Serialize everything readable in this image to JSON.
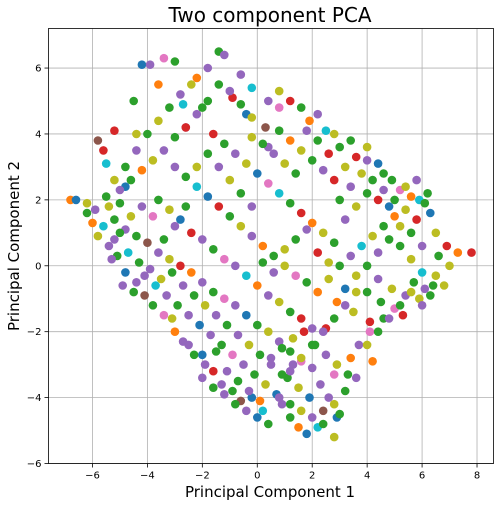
{
  "chart_data": {
    "type": "scatter",
    "title": "Two component PCA",
    "xlabel": "Principal Component 1",
    "ylabel": "Principal Component 2",
    "xlim": [
      -7.6,
      8.6
    ],
    "ylim": [
      -6,
      7.2
    ],
    "xticks": [
      -6,
      -4,
      -2,
      0,
      2,
      4,
      6,
      8
    ],
    "yticks": [
      -6,
      -4,
      -2,
      0,
      2,
      4,
      6
    ],
    "xtick_labels": [
      "−6",
      "−4",
      "−2",
      "0",
      "2",
      "4",
      "6",
      "8"
    ],
    "ytick_labels": [
      "−6",
      "−4",
      "−2",
      "0",
      "2",
      "4",
      "6"
    ],
    "grid": true,
    "legend": "none",
    "colors": [
      "#1f77b4",
      "#ff7f0e",
      "#2ca02c",
      "#d62728",
      "#9467bd",
      "#8c564b",
      "#e377c2",
      "#7f7f7f",
      "#bcbd22",
      "#17becf"
    ],
    "points": [
      [
        -6.8,
        2.0,
        1
      ],
      [
        -6.6,
        2.0,
        0
      ],
      [
        -6.2,
        1.6,
        2
      ],
      [
        -5.8,
        3.8,
        5
      ],
      [
        -5.6,
        3.5,
        3
      ],
      [
        -5.5,
        3.1,
        9
      ],
      [
        -5.2,
        4.1,
        3
      ],
      [
        -5.2,
        0.8,
        4
      ],
      [
        -5.0,
        1.9,
        2
      ],
      [
        -4.8,
        2.4,
        0
      ],
      [
        -4.5,
        5.0,
        2
      ],
      [
        -4.4,
        4.0,
        8
      ],
      [
        -4.2,
        6.1,
        0
      ],
      [
        -3.9,
        6.1,
        4
      ],
      [
        -3.6,
        5.5,
        1
      ],
      [
        -3.4,
        6.3,
        6
      ],
      [
        -3.0,
        6.2,
        2
      ],
      [
        -2.7,
        4.9,
        9
      ],
      [
        -2.6,
        4.2,
        4
      ],
      [
        -2.2,
        5.7,
        1
      ],
      [
        -1.4,
        6.5,
        2
      ],
      [
        -1.2,
        6.4,
        4
      ],
      [
        -0.9,
        5.1,
        3
      ],
      [
        -0.4,
        4.6,
        0
      ],
      [
        0.3,
        4.2,
        5
      ],
      [
        0.8,
        4.8,
        6
      ],
      [
        1.2,
        5.0,
        3
      ],
      [
        1.9,
        4.4,
        1
      ],
      [
        2.5,
        4.1,
        9
      ],
      [
        3.0,
        3.6,
        2
      ],
      [
        3.6,
        3.3,
        3
      ],
      [
        4.0,
        3.6,
        8
      ],
      [
        4.4,
        3.1,
        0
      ],
      [
        4.9,
        2.6,
        2
      ],
      [
        5.2,
        2.3,
        6
      ],
      [
        5.6,
        2.1,
        1
      ],
      [
        5.9,
        2.0,
        9
      ],
      [
        6.1,
        1.9,
        2
      ],
      [
        6.3,
        1.6,
        0
      ],
      [
        6.5,
        1.0,
        8
      ],
      [
        6.9,
        0.6,
        3
      ],
      [
        7.3,
        0.4,
        1
      ],
      [
        7.8,
        0.4,
        3
      ],
      [
        7.0,
        0.0,
        8
      ],
      [
        6.8,
        -0.6,
        8
      ],
      [
        6.3,
        -0.9,
        2
      ],
      [
        5.9,
        -1.0,
        8
      ],
      [
        5.4,
        -0.9,
        4
      ],
      [
        5.0,
        -1.3,
        6
      ],
      [
        4.6,
        -1.6,
        2
      ],
      [
        4.1,
        -1.7,
        3
      ],
      [
        3.5,
        -1.4,
        8
      ],
      [
        2.9,
        -1.1,
        1
      ],
      [
        2.5,
        -1.9,
        3
      ],
      [
        4.2,
        -2.9,
        1
      ],
      [
        3.4,
        -2.8,
        1
      ],
      [
        2.8,
        -3.3,
        6
      ],
      [
        2.6,
        -4.0,
        4
      ],
      [
        2.9,
        -4.6,
        0
      ],
      [
        3.0,
        -4.5,
        2
      ],
      [
        2.4,
        -4.4,
        5
      ],
      [
        2.2,
        -4.9,
        9
      ],
      [
        1.8,
        -5.1,
        0
      ],
      [
        2.8,
        -5.2,
        8
      ],
      [
        1.5,
        -4.9,
        1
      ],
      [
        1.2,
        -4.6,
        2
      ],
      [
        0.9,
        -4.2,
        4
      ],
      [
        0.2,
        -4.4,
        9
      ],
      [
        -0.2,
        -4.0,
        0
      ],
      [
        -0.6,
        -4.1,
        5
      ],
      [
        -0.9,
        -3.8,
        2
      ],
      [
        -1.3,
        -3.6,
        4
      ],
      [
        -1.6,
        -3.2,
        3
      ],
      [
        -2.0,
        -2.7,
        0
      ],
      [
        -2.5,
        -2.4,
        4
      ],
      [
        -3.0,
        -2.0,
        1
      ],
      [
        -3.4,
        -1.5,
        6
      ],
      [
        -3.8,
        -1.2,
        2
      ],
      [
        -4.1,
        -0.9,
        5
      ],
      [
        -4.4,
        -0.5,
        4
      ],
      [
        -4.8,
        -0.2,
        0
      ],
      [
        -5.1,
        0.3,
        2
      ],
      [
        -5.4,
        0.6,
        4
      ],
      [
        -5.8,
        0.9,
        8
      ],
      [
        -6.0,
        1.3,
        1
      ],
      [
        -5.6,
        1.2,
        9
      ],
      [
        -5.2,
        1.4,
        2
      ],
      [
        -4.8,
        1.1,
        4
      ],
      [
        -4.4,
        0.9,
        2
      ],
      [
        -4.0,
        0.7,
        5
      ],
      [
        -3.6,
        0.4,
        4
      ],
      [
        -3.2,
        0.2,
        8
      ],
      [
        -2.8,
        0.0,
        3
      ],
      [
        -2.4,
        -0.2,
        1
      ],
      [
        -2.0,
        -0.5,
        4
      ],
      [
        -1.6,
        -0.8,
        2
      ],
      [
        -1.2,
        -1.0,
        6
      ],
      [
        -0.8,
        -1.2,
        4
      ],
      [
        -0.4,
        -1.5,
        0
      ],
      [
        0.0,
        -1.8,
        2
      ],
      [
        0.4,
        -2.0,
        8
      ],
      [
        0.8,
        -2.3,
        4
      ],
      [
        1.2,
        -2.6,
        2
      ],
      [
        1.6,
        -2.9,
        6
      ],
      [
        2.0,
        -3.1,
        4
      ],
      [
        -3.6,
        2.0,
        2
      ],
      [
        -3.2,
        1.7,
        8
      ],
      [
        -2.8,
        1.4,
        0
      ],
      [
        -2.4,
        1.0,
        3
      ],
      [
        -2.0,
        0.8,
        4
      ],
      [
        -1.6,
        0.5,
        2
      ],
      [
        -1.2,
        0.2,
        6
      ],
      [
        -0.8,
        0.0,
        4
      ],
      [
        -0.4,
        -0.3,
        9
      ],
      [
        0.0,
        -0.6,
        1
      ],
      [
        0.4,
        -0.9,
        4
      ],
      [
        0.8,
        -1.1,
        8
      ],
      [
        1.2,
        -1.4,
        2
      ],
      [
        1.6,
        -1.6,
        3
      ],
      [
        2.0,
        -1.9,
        4
      ],
      [
        -3.0,
        3.0,
        4
      ],
      [
        -2.6,
        2.7,
        2
      ],
      [
        -2.2,
        2.4,
        9
      ],
      [
        -1.8,
        2.1,
        0
      ],
      [
        -1.4,
        1.8,
        3
      ],
      [
        -1.0,
        1.5,
        2
      ],
      [
        -0.6,
        1.2,
        8
      ],
      [
        -0.2,
        0.9,
        4
      ],
      [
        0.2,
        0.6,
        1
      ],
      [
        0.6,
        0.3,
        2
      ],
      [
        1.0,
        0.0,
        8
      ],
      [
        1.4,
        -0.3,
        6
      ],
      [
        1.8,
        -0.5,
        2
      ],
      [
        2.2,
        -0.8,
        1
      ],
      [
        2.6,
        -0.4,
        8
      ],
      [
        3.0,
        0.0,
        2
      ],
      [
        3.4,
        0.3,
        4
      ],
      [
        3.8,
        0.6,
        9
      ],
      [
        4.2,
        0.9,
        8
      ],
      [
        4.6,
        1.2,
        2
      ],
      [
        5.0,
        1.5,
        1
      ],
      [
        5.4,
        1.7,
        8
      ],
      [
        5.8,
        1.4,
        3
      ],
      [
        -1.6,
        4.0,
        3
      ],
      [
        -1.2,
        3.7,
        2
      ],
      [
        -0.8,
        3.4,
        4
      ],
      [
        -0.4,
        3.1,
        8
      ],
      [
        0.0,
        2.8,
        0
      ],
      [
        0.4,
        2.5,
        6
      ],
      [
        0.8,
        2.2,
        9
      ],
      [
        1.2,
        1.9,
        2
      ],
      [
        1.6,
        1.6,
        3
      ],
      [
        2.0,
        1.3,
        1
      ],
      [
        2.4,
        1.0,
        8
      ],
      [
        2.8,
        0.7,
        2
      ],
      [
        3.2,
        1.4,
        4
      ],
      [
        3.6,
        1.8,
        8
      ],
      [
        4.0,
        2.2,
        2
      ],
      [
        4.4,
        2.0,
        3
      ],
      [
        4.8,
        1.8,
        0
      ],
      [
        5.2,
        0.6,
        2
      ],
      [
        5.6,
        0.2,
        8
      ],
      [
        6.0,
        -0.2,
        9
      ],
      [
        4.4,
        -0.4,
        4
      ],
      [
        4.0,
        -0.8,
        2
      ],
      [
        3.6,
        -0.3,
        8
      ],
      [
        3.2,
        -0.7,
        0
      ],
      [
        2.8,
        2.6,
        3
      ],
      [
        2.4,
        2.9,
        4
      ],
      [
        2.0,
        3.2,
        2
      ],
      [
        1.6,
        3.5,
        8
      ],
      [
        1.2,
        3.8,
        1
      ],
      [
        0.8,
        4.1,
        2
      ],
      [
        0.4,
        3.6,
        4
      ],
      [
        -0.2,
        4.5,
        8
      ],
      [
        -0.6,
        4.9,
        2
      ],
      [
        -1.0,
        5.3,
        4
      ],
      [
        -1.8,
        5.0,
        2
      ],
      [
        -2.2,
        4.6,
        4
      ],
      [
        -2.6,
        4.2,
        3
      ],
      [
        -3.0,
        3.9,
        2
      ],
      [
        -3.4,
        3.5,
        4
      ],
      [
        -3.8,
        3.2,
        8
      ],
      [
        -4.2,
        2.9,
        1
      ],
      [
        -4.6,
        2.6,
        2
      ],
      [
        -5.0,
        2.3,
        4
      ],
      [
        -5.4,
        1.8,
        8
      ],
      [
        -4.9,
        -0.6,
        4
      ],
      [
        -4.5,
        -0.8,
        2
      ],
      [
        -4.1,
        -0.3,
        4
      ],
      [
        -3.7,
        -0.6,
        9
      ],
      [
        -3.3,
        -0.9,
        4
      ],
      [
        -2.9,
        -1.2,
        2
      ],
      [
        -2.5,
        -1.5,
        4
      ],
      [
        -2.1,
        -1.8,
        0
      ],
      [
        -1.7,
        -2.1,
        4
      ],
      [
        -1.3,
        -2.4,
        2
      ],
      [
        -0.9,
        -2.7,
        6
      ],
      [
        -0.5,
        -3.0,
        4
      ],
      [
        -0.1,
        -3.3,
        2
      ],
      [
        0.3,
        -3.6,
        8
      ],
      [
        0.7,
        -3.9,
        0
      ],
      [
        1.1,
        -3.4,
        2
      ],
      [
        1.5,
        -3.7,
        8
      ],
      [
        1.9,
        -4.0,
        0
      ],
      [
        2.3,
        -3.6,
        4
      ],
      [
        -1.9,
        -3.0,
        4
      ],
      [
        -2.3,
        -2.7,
        2
      ],
      [
        -2.7,
        -2.3,
        4
      ],
      [
        -3.1,
        -1.6,
        8
      ],
      [
        -1.5,
        -2.6,
        2
      ],
      [
        -1.1,
        -3.2,
        4
      ],
      [
        -0.7,
        -3.5,
        2
      ],
      [
        -0.3,
        -3.8,
        4
      ],
      [
        0.1,
        -4.1,
        1
      ],
      [
        0.5,
        -2.8,
        4
      ],
      [
        0.9,
        -2.5,
        2
      ],
      [
        1.3,
        -2.2,
        8
      ],
      [
        1.7,
        -2.0,
        3
      ],
      [
        2.1,
        -2.4,
        2
      ],
      [
        2.5,
        -2.7,
        4
      ],
      [
        2.9,
        -3.0,
        8
      ],
      [
        3.3,
        -3.3,
        2
      ],
      [
        3.7,
        -2.4,
        4
      ],
      [
        4.1,
        -2.0,
        6
      ],
      [
        4.5,
        -1.1,
        2
      ],
      [
        4.9,
        -0.7,
        8
      ],
      [
        5.3,
        -1.5,
        3
      ],
      [
        5.7,
        -0.5,
        2
      ],
      [
        6.1,
        -0.7,
        4
      ],
      [
        6.5,
        -0.3,
        8
      ],
      [
        6.6,
        0.3,
        2
      ],
      [
        0.2,
        0.1,
        2
      ],
      [
        0.6,
        -0.2,
        4
      ],
      [
        1.0,
        0.5,
        8
      ],
      [
        1.4,
        0.8,
        2
      ],
      [
        1.8,
        1.1,
        4
      ],
      [
        2.2,
        0.4,
        3
      ],
      [
        2.6,
        0.1,
        8
      ],
      [
        -0.2,
        1.8,
        4
      ],
      [
        -0.6,
        2.2,
        2
      ],
      [
        -1.0,
        2.6,
        8
      ],
      [
        -1.4,
        3.0,
        4
      ],
      [
        -1.8,
        3.4,
        2
      ],
      [
        -2.2,
        3.0,
        8
      ],
      [
        -2.6,
        1.8,
        2
      ],
      [
        -3.0,
        1.2,
        4
      ],
      [
        -3.4,
        0.8,
        2
      ],
      [
        -3.8,
        1.5,
        6
      ],
      [
        -4.2,
        1.8,
        4
      ],
      [
        -4.6,
        1.5,
        8
      ],
      [
        -5.0,
        1.0,
        2
      ],
      [
        -5.3,
        0.2,
        4
      ],
      [
        -4.7,
        0.4,
        9
      ],
      [
        -4.3,
        0.1,
        2
      ],
      [
        -3.9,
        -0.1,
        4
      ],
      [
        -3.5,
        -0.4,
        8
      ],
      [
        -3.1,
        -0.2,
        2
      ],
      [
        -2.7,
        -0.6,
        4
      ],
      [
        -2.3,
        -0.9,
        2
      ],
      [
        -1.9,
        -1.2,
        8
      ],
      [
        -1.5,
        -1.5,
        4
      ],
      [
        -1.1,
        -1.8,
        2
      ],
      [
        -0.7,
        -2.1,
        4
      ],
      [
        -0.3,
        -2.4,
        8
      ],
      [
        0.1,
        -2.7,
        2
      ],
      [
        0.5,
        -3.0,
        4
      ],
      [
        0.9,
        -3.3,
        2
      ],
      [
        1.3,
        -3.0,
        4
      ],
      [
        3.0,
        2.0,
        2
      ],
      [
        3.4,
        2.4,
        4
      ],
      [
        3.8,
        2.8,
        8
      ],
      [
        4.2,
        2.6,
        2
      ],
      [
        4.6,
        2.3,
        4
      ],
      [
        5.0,
        2.0,
        2
      ],
      [
        3.2,
        3.0,
        8
      ],
      [
        2.6,
        3.4,
        3
      ],
      [
        2.2,
        3.8,
        2
      ],
      [
        1.8,
        4.1,
        4
      ],
      [
        1.4,
        2.8,
        2
      ],
      [
        1.0,
        3.1,
        8
      ],
      [
        0.6,
        3.4,
        4
      ],
      [
        0.2,
        3.7,
        2
      ],
      [
        -0.2,
        3.9,
        8
      ],
      [
        -2.8,
        5.2,
        4
      ],
      [
        -3.2,
        4.8,
        2
      ],
      [
        -3.6,
        4.4,
        8
      ],
      [
        -4.0,
        4.0,
        2
      ],
      [
        -4.4,
        3.5,
        4
      ],
      [
        -4.8,
        3.0,
        2
      ],
      [
        -5.2,
        2.6,
        8
      ],
      [
        -5.5,
        2.1,
        2
      ],
      [
        -5.9,
        1.7,
        4
      ],
      [
        -6.2,
        1.9,
        8
      ],
      [
        -2.0,
        -3.4,
        4
      ],
      [
        -1.6,
        -3.7,
        2
      ],
      [
        -1.2,
        -3.9,
        4
      ],
      [
        -0.8,
        -4.2,
        2
      ],
      [
        -0.4,
        -4.4,
        4
      ],
      [
        0.0,
        -4.6,
        0
      ],
      [
        0.4,
        -4.8,
        2
      ],
      [
        0.8,
        -4.0,
        4
      ],
      [
        1.2,
        -4.2,
        2
      ],
      [
        1.6,
        -4.4,
        8
      ],
      [
        2.0,
        -4.6,
        4
      ],
      [
        2.4,
        -4.8,
        2
      ],
      [
        2.8,
        -4.2,
        8
      ],
      [
        3.2,
        -3.8,
        2
      ],
      [
        3.6,
        -3.4,
        4
      ],
      [
        4.0,
        -2.4,
        8
      ],
      [
        4.4,
        -2.0,
        2
      ],
      [
        4.8,
        -1.6,
        4
      ],
      [
        5.2,
        -1.2,
        2
      ],
      [
        5.6,
        -0.8,
        8
      ],
      [
        6.0,
        -1.2,
        4
      ],
      [
        6.4,
        -0.6,
        2
      ],
      [
        6.0,
        0.6,
        4
      ],
      [
        5.6,
        1.0,
        2
      ],
      [
        5.2,
        1.2,
        8
      ],
      [
        4.8,
        0.8,
        2
      ],
      [
        4.4,
        0.4,
        4
      ],
      [
        4.0,
        0.0,
        2
      ],
      [
        3.6,
        -0.8,
        8
      ],
      [
        3.2,
        -1.2,
        4
      ],
      [
        2.8,
        -1.6,
        2
      ],
      [
        2.4,
        -2.0,
        4
      ],
      [
        2.0,
        -2.4,
        2
      ],
      [
        1.6,
        -2.8,
        8
      ],
      [
        1.2,
        -3.2,
        4
      ],
      [
        -0.2,
        5.4,
        9
      ],
      [
        -0.6,
        5.8,
        4
      ],
      [
        -1.4,
        5.5,
        2
      ],
      [
        -1.8,
        6.0,
        4
      ],
      [
        -2.4,
        5.5,
        8
      ],
      [
        -2.0,
        4.8,
        2
      ],
      [
        0.4,
        5.0,
        4
      ],
      [
        0.8,
        5.3,
        8
      ],
      [
        1.6,
        4.8,
        2
      ],
      [
        2.2,
        4.6,
        4
      ],
      [
        2.8,
        4.0,
        8
      ],
      [
        3.4,
        3.8,
        2
      ],
      [
        4.0,
        3.2,
        4
      ],
      [
        4.6,
        2.8,
        2
      ],
      [
        5.4,
        2.4,
        8
      ],
      [
        5.8,
        2.6,
        4
      ],
      [
        6.2,
        2.2,
        2
      ]
    ]
  }
}
